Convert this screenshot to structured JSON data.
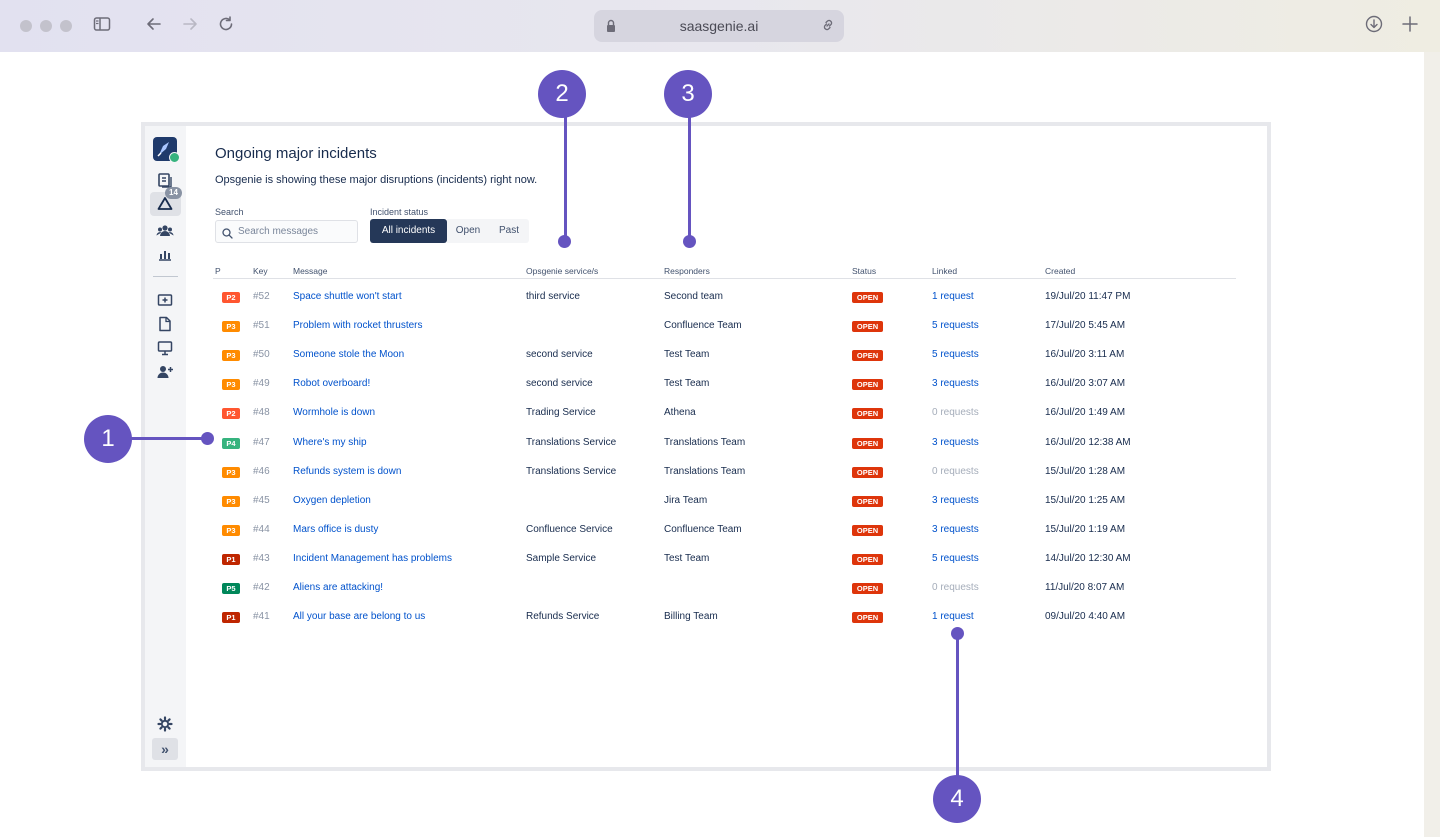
{
  "browser": {
    "url": "saasgenie.ai"
  },
  "app": {
    "nav_badge": "14",
    "page_title": "Ongoing major incidents",
    "page_subtitle": "Opsgenie is showing these major disruptions (incidents) right now.",
    "search": {
      "label": "Search",
      "placeholder": "Search messages"
    },
    "status_filter": {
      "label": "Incident status",
      "options": [
        "All incidents",
        "Open",
        "Past"
      ],
      "selected": "All incidents"
    },
    "columns": [
      "P",
      "Key",
      "Message",
      "Opsgenie service/s",
      "Responders",
      "Status",
      "Linked",
      "Created"
    ],
    "rows": [
      {
        "priority": "P2",
        "key": "#52",
        "message": "Space shuttle won't start",
        "service": "third service",
        "responders": "Second team",
        "status": "OPEN",
        "linked": "1 request",
        "created": "19/Jul/20 11:47 PM"
      },
      {
        "priority": "P3",
        "key": "#51",
        "message": "Problem with rocket thrusters",
        "service": "",
        "responders": "Confluence Team",
        "status": "OPEN",
        "linked": "5 requests",
        "created": "17/Jul/20 5:45 AM"
      },
      {
        "priority": "P3",
        "key": "#50",
        "message": "Someone stole the Moon",
        "service": "second service",
        "responders": "Test Team",
        "status": "OPEN",
        "linked": "5 requests",
        "created": "16/Jul/20 3:11 AM"
      },
      {
        "priority": "P3",
        "key": "#49",
        "message": "Robot overboard!",
        "service": "second service",
        "responders": "Test Team",
        "status": "OPEN",
        "linked": "3 requests",
        "created": "16/Jul/20 3:07 AM"
      },
      {
        "priority": "P2",
        "key": "#48",
        "message": "Wormhole is down",
        "service": "Trading Service",
        "responders": "Athena",
        "status": "OPEN",
        "linked": "0 requests",
        "created": "16/Jul/20 1:49 AM"
      },
      {
        "priority": "P4",
        "key": "#47",
        "message": "Where's my ship",
        "service": "Translations Service",
        "responders": "Translations Team",
        "status": "OPEN",
        "linked": "3 requests",
        "created": "16/Jul/20 12:38 AM"
      },
      {
        "priority": "P3",
        "key": "#46",
        "message": "Refunds system is down",
        "service": "Translations Service",
        "responders": "Translations Team",
        "status": "OPEN",
        "linked": "0 requests",
        "created": "15/Jul/20 1:28 AM"
      },
      {
        "priority": "P3",
        "key": "#45",
        "message": "Oxygen depletion",
        "service": "",
        "responders": "Jira Team",
        "status": "OPEN",
        "linked": "3 requests",
        "created": "15/Jul/20 1:25 AM"
      },
      {
        "priority": "P3",
        "key": "#44",
        "message": "Mars office is dusty",
        "service": "Confluence Service",
        "responders": "Confluence Team",
        "status": "OPEN",
        "linked": "3 requests",
        "created": "15/Jul/20 1:19 AM"
      },
      {
        "priority": "P1",
        "key": "#43",
        "message": "Incident Management has problems",
        "service": "Sample Service",
        "responders": "Test Team",
        "status": "OPEN",
        "linked": "5 requests",
        "created": "14/Jul/20 12:30 AM"
      },
      {
        "priority": "P5",
        "key": "#42",
        "message": "Aliens are attacking!",
        "service": "",
        "responders": "",
        "status": "OPEN",
        "linked": "0 requests",
        "created": "11/Jul/20 8:07 AM"
      },
      {
        "priority": "P1",
        "key": "#41",
        "message": "All your base are belong to us",
        "service": "Refunds Service",
        "responders": "Billing Team",
        "status": "OPEN",
        "linked": "1 request",
        "created": "09/Jul/20 4:40 AM"
      }
    ]
  },
  "priority_colors": {
    "P1": "#bf2600",
    "P2": "#ff5630",
    "P3": "#ff8b00",
    "P4": "#36b37e",
    "P5": "#00875a"
  },
  "callouts": [
    "1",
    "2",
    "3",
    "4"
  ],
  "icons": {
    "sidebar": [
      "app-logo-icon",
      "queue-icon",
      "incidents-icon",
      "teams-icon",
      "reports-icon",
      "raise-request-icon",
      "knowledge-icon",
      "portal-icon",
      "customers-icon",
      "settings-icon",
      "expand-icon"
    ],
    "chrome": [
      "sidebar-toggle-icon",
      "back-icon",
      "forward-icon",
      "reload-icon",
      "lock-icon",
      "link-icon",
      "download-icon",
      "new-tab-icon"
    ]
  }
}
